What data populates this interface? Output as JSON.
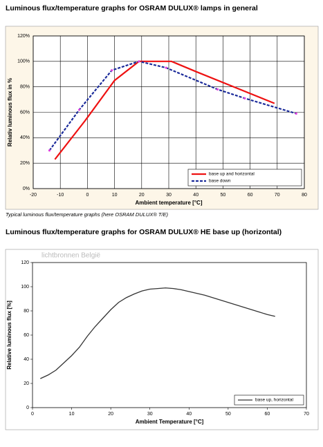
{
  "chart_data": [
    {
      "type": "line",
      "title": "Luminous flux/temperature graphs for OSRAM DULUX® lamps in general",
      "caption": "Typical luminous flux/temperature graphs (here OSRAM DULUX® T/E)",
      "x_label": "Ambient temperature [°C]",
      "y_label": "Relativ luminous flux in %",
      "xlim": [
        -20,
        80
      ],
      "xticks": [
        -20,
        -10,
        0,
        10,
        20,
        30,
        40,
        50,
        60,
        70,
        80
      ],
      "ylim": [
        0,
        120
      ],
      "yticks": [
        {
          "value": 0,
          "label": "0%"
        },
        {
          "value": 20,
          "label": "20%"
        },
        {
          "value": 40,
          "label": "40%"
        },
        {
          "value": 60,
          "label": "60%"
        },
        {
          "value": 80,
          "label": "80%"
        },
        {
          "value": 100,
          "label": "100%"
        },
        {
          "value": 120,
          "label": "120%"
        }
      ],
      "grid": true,
      "background": "#fdf6e8",
      "legend": "lower right",
      "series": [
        {
          "name": "base up and horizontal",
          "color": "#ee1111",
          "style": "solid",
          "x": [
            -12,
            -1,
            10,
            19,
            31,
            40,
            69
          ],
          "values": [
            23,
            53,
            85,
            100,
            100,
            92,
            67
          ]
        },
        {
          "name": "base down",
          "color": "#1a2a9a",
          "style": "dashed",
          "markers": true,
          "marker_color": "#e040e0",
          "x": [
            -14,
            -3,
            9,
            19,
            29,
            48,
            58,
            77
          ],
          "values": [
            30,
            62,
            93,
            100,
            95,
            78,
            71,
            59
          ]
        }
      ]
    },
    {
      "type": "line",
      "title": "Luminous flux/temperature graphs for OSRAM DULUX® HE base up (horizontal)",
      "watermark": "lichtbronnen België",
      "x_label": "Ambient Temperature [°C]",
      "y_label": "Relative luminous flux [%]",
      "xlim": [
        0,
        70
      ],
      "xticks": [
        0,
        10,
        20,
        30,
        40,
        50,
        60,
        70
      ],
      "ylim": [
        0,
        120
      ],
      "yticks": [
        0,
        20,
        40,
        60,
        80,
        100,
        120
      ],
      "grid": false,
      "background": "#ffffff",
      "legend": "lower right",
      "series": [
        {
          "name": "base up, horizontal",
          "color": "#333333",
          "style": "solid",
          "x": [
            2,
            4,
            6,
            8,
            10,
            12,
            14,
            16,
            18,
            20,
            22,
            24,
            26,
            28,
            30,
            32,
            34,
            36,
            38,
            40,
            42,
            44,
            46,
            48,
            50,
            52,
            54,
            56,
            58,
            60,
            62
          ],
          "values": [
            24,
            27,
            31,
            37,
            43,
            50,
            59,
            67,
            74,
            81,
            87,
            91,
            94,
            96.5,
            98,
            98.5,
            99,
            98.5,
            97.5,
            96,
            94.5,
            93,
            91,
            89,
            87,
            85,
            83,
            81,
            79,
            77,
            75.5
          ]
        }
      ]
    }
  ]
}
